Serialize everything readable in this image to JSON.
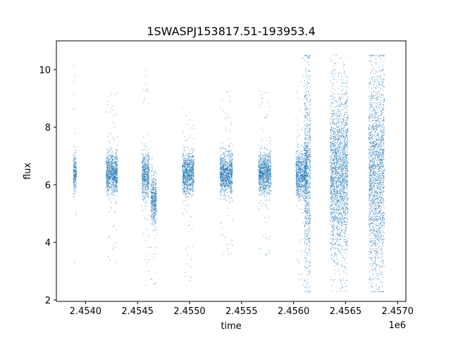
{
  "chart_data": {
    "type": "scatter",
    "title": "1SWASPJ153817.51-193953.4",
    "xlabel": "time",
    "ylabel": "flux",
    "x_offset_label": "1e6",
    "xlim": [
      2453720,
      2457080
    ],
    "ylim": [
      1.95,
      11.0
    ],
    "xticks": [
      2454000,
      2454500,
      2455000,
      2455500,
      2456000,
      2456500,
      2457000
    ],
    "xtick_labels": [
      "2.4540",
      "2.4545",
      "2.4550",
      "2.4555",
      "2.4560",
      "2.4565",
      "2.4570"
    ],
    "yticks": [
      2,
      4,
      6,
      8,
      10
    ],
    "ytick_labels": [
      "2",
      "4",
      "6",
      "8",
      "10"
    ],
    "grid": false,
    "marker_color": "#1f77b4",
    "series": [
      {
        "clusters": [
          {
            "x": [
              2453880,
              2453910
            ],
            "y_center": 6.4,
            "y_core": 0.35,
            "y_range": [
              2.5,
              10.4
            ]
          },
          {
            "x": [
              2454195,
              2454305
            ],
            "y_center": 6.4,
            "y_core": 0.35,
            "y_range": [
              3.3,
              9.3
            ]
          },
          {
            "x": [
              2454540,
              2454610
            ],
            "y_center": 6.3,
            "y_core": 0.4,
            "y_range": [
              2.5,
              10.0
            ]
          },
          {
            "x": [
              2454625,
              2454680
            ],
            "y_center": 5.5,
            "y_core": 0.4,
            "y_range": [
              2.5,
              7.2
            ]
          },
          {
            "x": [
              2454930,
              2455040
            ],
            "y_center": 6.4,
            "y_core": 0.35,
            "y_range": [
              2.5,
              8.8
            ]
          },
          {
            "x": [
              2455290,
              2455410
            ],
            "y_center": 6.4,
            "y_core": 0.35,
            "y_range": [
              3.5,
              9.3
            ]
          },
          {
            "x": [
              2455660,
              2455780
            ],
            "y_center": 6.4,
            "y_core": 0.35,
            "y_range": [
              3.5,
              9.4
            ]
          },
          {
            "x": [
              2456020,
              2456130
            ],
            "y_center": 6.4,
            "y_core": 0.4,
            "y_range": [
              2.3,
              10.5
            ]
          },
          {
            "x": [
              2456100,
              2456160
            ],
            "y_center": 6.4,
            "y_core": 1.8,
            "y_range": [
              2.3,
              10.5
            ]
          },
          {
            "x": [
              2456350,
              2456520
            ],
            "y_center": 6.4,
            "y_core": 1.4,
            "y_range": [
              2.3,
              10.5
            ]
          },
          {
            "x": [
              2456720,
              2456870
            ],
            "y_center": 6.4,
            "y_core": 1.8,
            "y_range": [
              2.3,
              10.5
            ]
          }
        ]
      }
    ]
  }
}
